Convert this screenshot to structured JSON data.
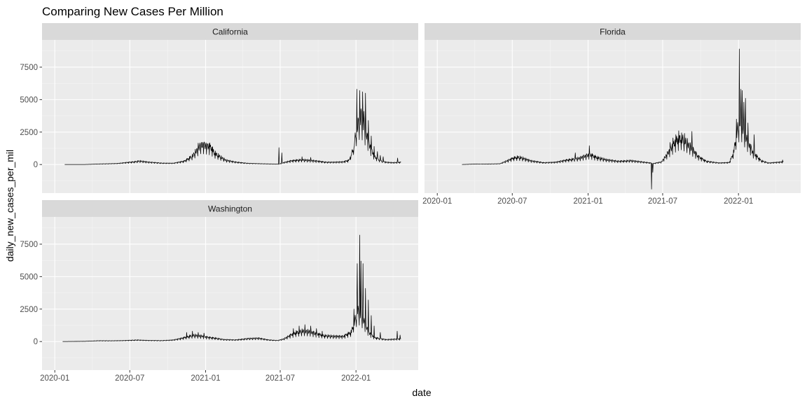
{
  "chart_data": {
    "type": "line",
    "title": "Comparing New Cases Per Million",
    "xlabel": "date",
    "ylabel": "daily_new_cases_per_mil",
    "x_ticks": [
      "2020-01",
      "2020-07",
      "2021-01",
      "2021-07",
      "2022-01"
    ],
    "y_ticks": [
      "0",
      "2500",
      "5000",
      "7500"
    ],
    "xlim": [
      "2019-12-01",
      "2022-06-01"
    ],
    "ylim": [
      -2200,
      9600
    ],
    "grid": true,
    "legend": "none",
    "colors": {
      "panel_bg": "#ebebeb",
      "strip_bg": "#d9d9d9",
      "grid_major": "#ffffff",
      "grid_minor": "#f5f5f5",
      "line": "#000000",
      "tick_text": "#4d4d4d",
      "tick_mark": "#333333"
    },
    "panels": [
      {
        "name": "California",
        "start": "2020-01-25",
        "end": "2022-04-20",
        "points": [
          [
            "2020-01-25",
            0
          ],
          [
            "2020-03-15",
            5
          ],
          [
            "2020-04-15",
            40
          ],
          [
            "2020-06-01",
            80
          ],
          [
            "2020-07-10",
            200
          ],
          [
            "2020-07-25",
            270
          ],
          [
            "2020-08-15",
            180
          ],
          [
            "2020-09-15",
            110
          ],
          [
            "2020-10-15",
            100
          ],
          [
            "2020-11-10",
            250
          ],
          [
            "2020-11-30",
            650
          ],
          [
            "2020-12-12",
            1150
          ],
          [
            "2020-12-20",
            1500
          ],
          [
            "2020-12-28",
            1480
          ],
          [
            "2021-01-08",
            1400
          ],
          [
            "2021-01-15",
            1250
          ],
          [
            "2021-01-22",
            900
          ],
          [
            "2021-02-05",
            600
          ],
          [
            "2021-02-20",
            320
          ],
          [
            "2021-03-15",
            180
          ],
          [
            "2021-04-15",
            90
          ],
          [
            "2021-05-15",
            60
          ],
          [
            "2021-06-15",
            40
          ],
          [
            "2021-06-28",
            30
          ],
          [
            "2021-07-10",
            150
          ],
          [
            "2021-07-25",
            260
          ],
          [
            "2021-08-10",
            330
          ],
          [
            "2021-08-25",
            360
          ],
          [
            "2021-09-15",
            300
          ],
          [
            "2021-10-01",
            250
          ],
          [
            "2021-10-20",
            180
          ],
          [
            "2021-11-10",
            180
          ],
          [
            "2021-12-01",
            200
          ],
          [
            "2021-12-15",
            320
          ],
          [
            "2021-12-25",
            1200
          ],
          [
            "2022-01-02",
            2600
          ],
          [
            "2022-01-08",
            3400
          ],
          [
            "2022-01-12",
            3700
          ],
          [
            "2022-01-18",
            3300
          ],
          [
            "2022-01-25",
            2500
          ],
          [
            "2022-02-05",
            1300
          ],
          [
            "2022-02-15",
            600
          ],
          [
            "2022-03-01",
            300
          ],
          [
            "2022-03-15",
            180
          ],
          [
            "2022-04-01",
            140
          ],
          [
            "2022-04-20",
            170
          ]
        ],
        "spikes": [
          [
            "2020-12-14",
            1650
          ],
          [
            "2020-12-21",
            1600
          ],
          [
            "2020-12-28",
            1680
          ],
          [
            "2021-01-04",
            1500
          ],
          [
            "2021-06-28",
            1300
          ],
          [
            "2021-07-05",
            900
          ],
          [
            "2021-08-23",
            600
          ],
          [
            "2021-09-13",
            550
          ],
          [
            "2021-12-20",
            700
          ],
          [
            "2021-12-27",
            1300
          ],
          [
            "2022-01-03",
            5800
          ],
          [
            "2022-01-06",
            3600
          ],
          [
            "2022-01-10",
            5700
          ],
          [
            "2022-01-13",
            4300
          ],
          [
            "2022-01-17",
            5600
          ],
          [
            "2022-01-20",
            4100
          ],
          [
            "2022-01-24",
            5500
          ],
          [
            "2022-01-31",
            3400
          ],
          [
            "2022-02-07",
            2200
          ],
          [
            "2022-02-14",
            1400
          ],
          [
            "2022-02-22",
            1000
          ],
          [
            "2022-03-01",
            700
          ],
          [
            "2022-03-08",
            600
          ],
          [
            "2022-04-12",
            500
          ]
        ]
      },
      {
        "name": "Florida",
        "start": "2020-03-01",
        "end": "2022-04-20",
        "points": [
          [
            "2020-03-01",
            0
          ],
          [
            "2020-04-01",
            40
          ],
          [
            "2020-05-01",
            40
          ],
          [
            "2020-06-01",
            60
          ],
          [
            "2020-06-20",
            300
          ],
          [
            "2020-07-05",
            500
          ],
          [
            "2020-07-15",
            560
          ],
          [
            "2020-07-25",
            500
          ],
          [
            "2020-08-15",
            280
          ],
          [
            "2020-09-15",
            140
          ],
          [
            "2020-10-15",
            180
          ],
          [
            "2020-11-15",
            360
          ],
          [
            "2020-12-10",
            480
          ],
          [
            "2021-01-05",
            750
          ],
          [
            "2021-01-20",
            560
          ],
          [
            "2021-02-15",
            360
          ],
          [
            "2021-03-15",
            240
          ],
          [
            "2021-04-15",
            300
          ],
          [
            "2021-05-15",
            180
          ],
          [
            "2021-06-10",
            90
          ],
          [
            "2021-06-28",
            200
          ],
          [
            "2021-07-10",
            700
          ],
          [
            "2021-07-25",
            1400
          ],
          [
            "2021-08-05",
            1900
          ],
          [
            "2021-08-15",
            2050
          ],
          [
            "2021-08-25",
            1800
          ],
          [
            "2021-09-10",
            1200
          ],
          [
            "2021-09-25",
            600
          ],
          [
            "2021-10-15",
            250
          ],
          [
            "2021-11-15",
            120
          ],
          [
            "2021-12-10",
            150
          ],
          [
            "2021-12-20",
            900
          ],
          [
            "2021-12-28",
            2500
          ],
          [
            "2022-01-04",
            3400
          ],
          [
            "2022-01-10",
            3100
          ],
          [
            "2022-01-20",
            2000
          ],
          [
            "2022-02-05",
            900
          ],
          [
            "2022-02-25",
            300
          ],
          [
            "2022-03-15",
            120
          ],
          [
            "2022-04-20",
            200
          ]
        ],
        "spikes": [
          [
            "2020-12-01",
            900
          ],
          [
            "2021-01-04",
            1450
          ],
          [
            "2021-06-04",
            -1900
          ],
          [
            "2021-06-07",
            -600
          ],
          [
            "2021-07-19",
            1700
          ],
          [
            "2021-07-26",
            2050
          ],
          [
            "2021-08-02",
            2300
          ],
          [
            "2021-08-09",
            2600
          ],
          [
            "2021-08-16",
            2450
          ],
          [
            "2021-08-23",
            2400
          ],
          [
            "2021-09-10",
            2550
          ],
          [
            "2021-12-27",
            3500
          ],
          [
            "2022-01-03",
            8900
          ],
          [
            "2022-01-07",
            5800
          ],
          [
            "2022-01-10",
            5700
          ],
          [
            "2022-01-14",
            4800
          ],
          [
            "2022-01-18",
            5100
          ],
          [
            "2022-01-24",
            3200
          ],
          [
            "2022-02-08",
            2300
          ],
          [
            "2022-04-18",
            350
          ]
        ]
      },
      {
        "name": "Washington",
        "start": "2020-01-20",
        "end": "2022-04-20",
        "points": [
          [
            "2020-01-20",
            0
          ],
          [
            "2020-03-15",
            20
          ],
          [
            "2020-04-15",
            60
          ],
          [
            "2020-05-15",
            60
          ],
          [
            "2020-06-15",
            70
          ],
          [
            "2020-07-20",
            120
          ],
          [
            "2020-08-15",
            80
          ],
          [
            "2020-09-15",
            70
          ],
          [
            "2020-10-15",
            120
          ],
          [
            "2020-11-05",
            250
          ],
          [
            "2020-11-25",
            430
          ],
          [
            "2020-12-05",
            480
          ],
          [
            "2020-12-20",
            420
          ],
          [
            "2021-01-10",
            300
          ],
          [
            "2021-01-25",
            260
          ],
          [
            "2021-02-15",
            150
          ],
          [
            "2021-03-15",
            120
          ],
          [
            "2021-04-15",
            230
          ],
          [
            "2021-05-10",
            250
          ],
          [
            "2021-06-01",
            130
          ],
          [
            "2021-06-25",
            80
          ],
          [
            "2021-07-10",
            200
          ],
          [
            "2021-07-25",
            460
          ],
          [
            "2021-08-10",
            700
          ],
          [
            "2021-08-25",
            800
          ],
          [
            "2021-09-10",
            750
          ],
          [
            "2021-09-25",
            600
          ],
          [
            "2021-10-15",
            450
          ],
          [
            "2021-11-10",
            400
          ],
          [
            "2021-12-01",
            380
          ],
          [
            "2021-12-20",
            700
          ],
          [
            "2021-12-28",
            1500
          ],
          [
            "2022-01-05",
            2400
          ],
          [
            "2022-01-12",
            2200
          ],
          [
            "2022-01-20",
            1600
          ],
          [
            "2022-02-01",
            700
          ],
          [
            "2022-02-15",
            300
          ],
          [
            "2022-03-15",
            150
          ],
          [
            "2022-04-20",
            200
          ]
        ],
        "spikes": [
          [
            "2020-11-16",
            700
          ],
          [
            "2020-11-30",
            800
          ],
          [
            "2020-12-14",
            700
          ],
          [
            "2020-12-28",
            650
          ],
          [
            "2021-08-02",
            1000
          ],
          [
            "2021-08-16",
            1200
          ],
          [
            "2021-08-30",
            1300
          ],
          [
            "2021-09-13",
            1200
          ],
          [
            "2021-09-27",
            1000
          ],
          [
            "2021-10-11",
            800
          ],
          [
            "2021-12-27",
            2500
          ],
          [
            "2022-01-04",
            6000
          ],
          [
            "2022-01-10",
            8200
          ],
          [
            "2022-01-13",
            6200
          ],
          [
            "2022-01-18",
            6000
          ],
          [
            "2022-01-24",
            4100
          ],
          [
            "2022-01-31",
            3200
          ],
          [
            "2022-02-07",
            2000
          ],
          [
            "2022-02-14",
            1200
          ],
          [
            "2022-03-01",
            700
          ],
          [
            "2022-04-11",
            800
          ],
          [
            "2022-04-18",
            500
          ]
        ]
      }
    ]
  }
}
